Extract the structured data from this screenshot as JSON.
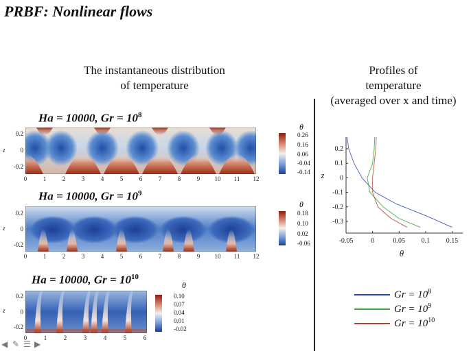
{
  "slide": {
    "title": "PRBF: Nonlinear flows",
    "left_heading_line1": "The instantaneous distribution",
    "left_heading_line2": "of temperature",
    "right_heading_line1": "Profiles of",
    "right_heading_line2": "temperature",
    "right_heading_line3": "(averaged over x and time)"
  },
  "panels": [
    {
      "label_base": "Ha = 10000, Gr = 10",
      "label_exp": "8",
      "x_ticks": [
        "0",
        "1",
        "2",
        "3",
        "4",
        "5",
        "6",
        "7",
        "8",
        "9",
        "10",
        "11",
        "12"
      ],
      "z_ticks": [
        "0.2",
        "0",
        "-0.2"
      ],
      "axis_label": "z",
      "colorbar_title": "θ",
      "colorbar_values": [
        "0.26",
        "0.16",
        "0.06",
        "-0.04",
        "-0.14"
      ]
    },
    {
      "label_base": "Ha = 10000, Gr = 10",
      "label_exp": "9",
      "x_ticks": [
        "0",
        "1",
        "2",
        "3",
        "4",
        "5",
        "6",
        "7",
        "8",
        "9",
        "10",
        "11",
        "12"
      ],
      "z_ticks": [
        "0.2",
        "0",
        "-0.2"
      ],
      "axis_label": "z",
      "colorbar_title": "θ",
      "colorbar_values": [
        "0.18",
        "0.10",
        "0.02",
        "-0.06"
      ]
    },
    {
      "label_base": "Ha = 10000, Gr = 10",
      "label_exp": "10",
      "x_ticks": [
        "0",
        "1",
        "2",
        "3",
        "4",
        "5",
        "6"
      ],
      "z_ticks": [
        "0.2",
        "0",
        "-0.2"
      ],
      "axis_label": "z",
      "colorbar_title": "θ",
      "colorbar_values": [
        "0.10",
        "0.07",
        "0.04",
        "0.01",
        "-0.02"
      ]
    }
  ],
  "chart_data": {
    "type": "line",
    "title": "",
    "xlabel": "θ",
    "ylabel": "z",
    "xlim": [
      -0.05,
      0.17
    ],
    "ylim": [
      -0.38,
      0.28
    ],
    "x_ticks": [
      "-0.05",
      "0",
      "0.05",
      "0.1",
      "0.15"
    ],
    "y_ticks": [
      "0.2",
      "0.1",
      "0",
      "-0.1",
      "-0.2",
      "-0.3"
    ],
    "series": [
      {
        "name": "Gr = 10^8",
        "color": "#2a45b8",
        "points": [
          [
            -0.048,
            0.28
          ],
          [
            -0.045,
            0.2
          ],
          [
            -0.035,
            0.1
          ],
          [
            -0.02,
            0.0
          ],
          [
            0.005,
            -0.1
          ],
          [
            0.045,
            -0.18
          ],
          [
            0.1,
            -0.26
          ],
          [
            0.15,
            -0.34
          ]
        ]
      },
      {
        "name": "Gr = 10^9",
        "color": "#3aa33a",
        "points": [
          [
            0.004,
            0.28
          ],
          [
            0.003,
            0.2
          ],
          [
            0.0,
            0.1
          ],
          [
            -0.01,
            0.0
          ],
          [
            -0.005,
            -0.1
          ],
          [
            0.02,
            -0.2
          ],
          [
            0.05,
            -0.28
          ],
          [
            0.09,
            -0.34
          ]
        ]
      },
      {
        "name": "Gr = 10^10",
        "color": "#b0442e",
        "points": [
          [
            0.007,
            0.28
          ],
          [
            0.006,
            0.2
          ],
          [
            0.003,
            0.1
          ],
          [
            0.0,
            0.0
          ],
          [
            0.0,
            -0.1
          ],
          [
            0.01,
            -0.2
          ],
          [
            0.035,
            -0.28
          ],
          [
            0.065,
            -0.34
          ]
        ]
      }
    ],
    "legend": [
      {
        "base": "Gr = 10",
        "exp": "8",
        "color": "#2a45b8"
      },
      {
        "base": "Gr = 10",
        "exp": "9",
        "color": "#3aa33a"
      },
      {
        "base": "Gr = 10",
        "exp": "10",
        "color": "#b0442e"
      }
    ]
  },
  "nav_icons": [
    "arrow-left-icon",
    "pencil-icon",
    "menu-icon",
    "arrow-right-icon"
  ]
}
